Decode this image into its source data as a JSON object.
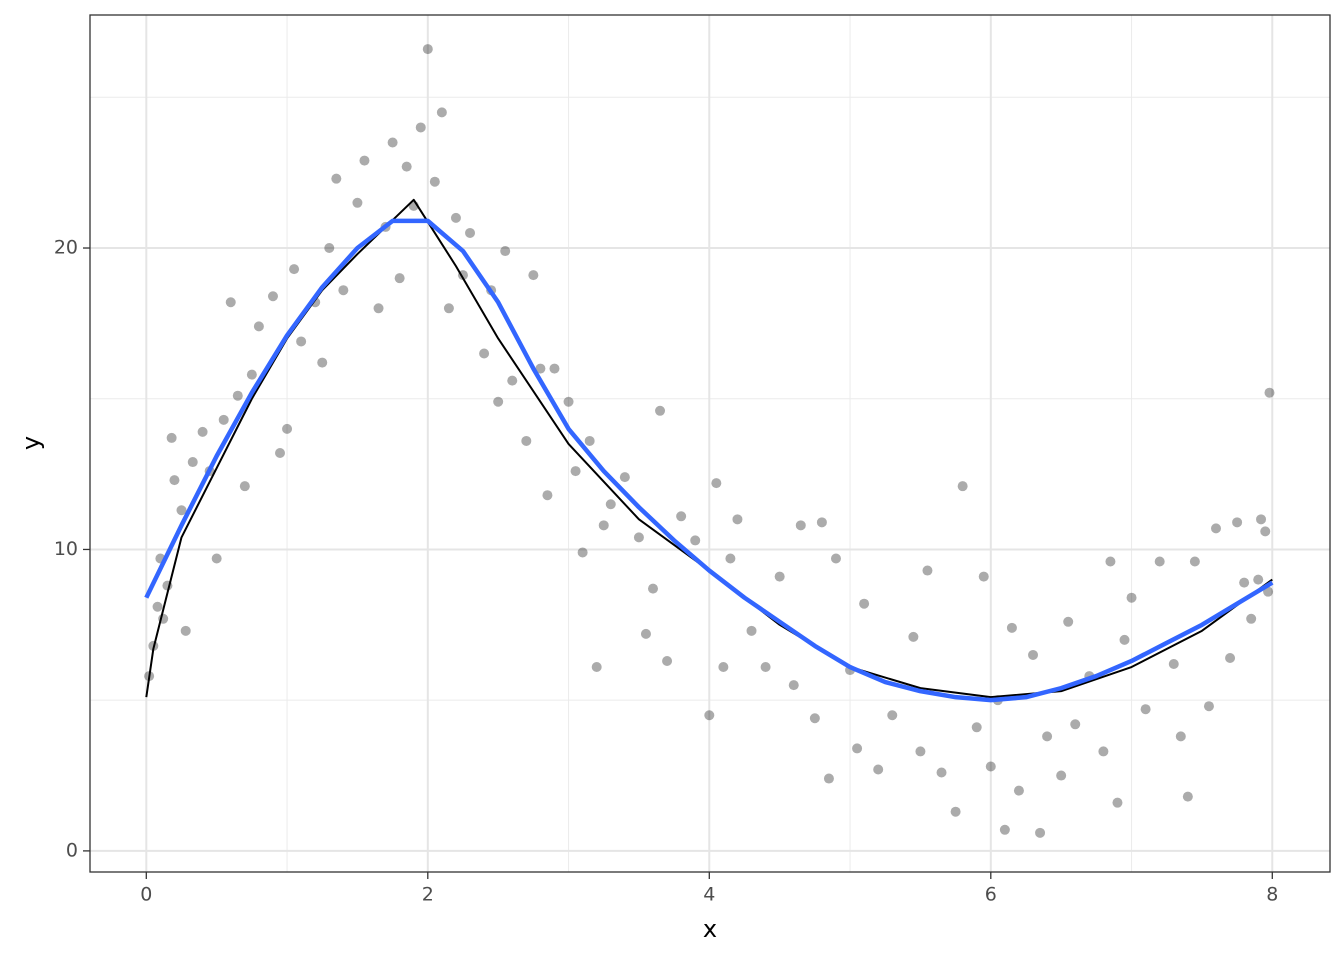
{
  "chart_data": {
    "type": "scatter",
    "x_label": "x",
    "y_label": "y",
    "xlim": [
      -0.4,
      8.41
    ],
    "ylim": [
      -0.7,
      27.73
    ],
    "xticks": [
      0,
      2,
      4,
      6,
      8
    ],
    "yticks": [
      0,
      10,
      20
    ],
    "x_minor_ticks": [
      1,
      3,
      5,
      7
    ],
    "y_minor_ticks": [
      5,
      15,
      25
    ],
    "grid": true,
    "points": {
      "color": "#000000",
      "opacity": 0.33,
      "x": [
        0.02,
        0.05,
        0.08,
        0.1,
        0.12,
        0.15,
        0.18,
        0.2,
        0.25,
        0.28,
        0.33,
        0.4,
        0.45,
        0.5,
        0.55,
        0.6,
        0.65,
        0.7,
        0.75,
        0.8,
        0.9,
        0.95,
        1.0,
        1.05,
        1.1,
        1.2,
        1.25,
        1.3,
        1.35,
        1.4,
        1.5,
        1.55,
        1.65,
        1.7,
        1.75,
        1.8,
        1.85,
        1.9,
        1.95,
        2.0,
        2.05,
        2.1,
        2.15,
        2.2,
        2.25,
        2.3,
        2.4,
        2.45,
        2.5,
        2.55,
        2.6,
        2.7,
        2.75,
        2.8,
        2.85,
        2.9,
        3.0,
        3.05,
        3.1,
        3.15,
        3.2,
        3.25,
        3.3,
        3.4,
        3.5,
        3.55,
        3.6,
        3.65,
        3.7,
        3.8,
        3.9,
        4.0,
        4.05,
        4.1,
        4.15,
        4.2,
        4.3,
        4.4,
        4.5,
        4.6,
        4.65,
        4.75,
        4.8,
        4.85,
        4.9,
        5.0,
        5.05,
        5.1,
        5.2,
        5.3,
        5.45,
        5.5,
        5.55,
        5.65,
        5.75,
        5.8,
        5.9,
        5.95,
        6.0,
        6.05,
        6.1,
        6.15,
        6.2,
        6.3,
        6.35,
        6.4,
        6.5,
        6.55,
        6.6,
        6.7,
        6.8,
        6.85,
        6.9,
        6.95,
        7.0,
        7.1,
        7.2,
        7.3,
        7.35,
        7.4,
        7.45,
        7.55,
        7.6,
        7.7,
        7.75,
        7.8,
        7.85,
        7.9,
        7.92,
        7.95,
        7.98,
        7.97
      ],
      "y": [
        5.8,
        6.8,
        8.1,
        9.7,
        7.7,
        8.8,
        13.7,
        12.3,
        11.3,
        7.3,
        12.9,
        13.9,
        12.6,
        9.7,
        14.3,
        18.2,
        15.1,
        12.1,
        15.8,
        17.4,
        18.4,
        13.2,
        14.0,
        19.3,
        16.9,
        18.2,
        16.2,
        20.0,
        22.3,
        18.6,
        21.5,
        22.9,
        18.0,
        20.7,
        23.5,
        19.0,
        22.7,
        21.4,
        24.0,
        26.6,
        22.2,
        24.5,
        18.0,
        21.0,
        19.1,
        20.5,
        16.5,
        18.6,
        14.9,
        19.9,
        15.6,
        13.6,
        19.1,
        16.0,
        11.8,
        16.0,
        14.9,
        12.6,
        9.9,
        13.6,
        6.1,
        10.8,
        11.5,
        12.4,
        10.4,
        7.2,
        8.7,
        14.6,
        6.3,
        11.1,
        10.3,
        4.5,
        12.2,
        6.1,
        9.7,
        11.0,
        7.3,
        6.1,
        9.1,
        5.5,
        10.8,
        4.4,
        10.9,
        2.4,
        9.7,
        6.0,
        3.4,
        8.2,
        2.7,
        4.5,
        7.1,
        3.3,
        9.3,
        2.6,
        1.3,
        12.1,
        4.1,
        9.1,
        2.8,
        5.0,
        0.7,
        7.4,
        2.0,
        6.5,
        0.6,
        3.8,
        2.5,
        7.6,
        4.2,
        5.8,
        3.3,
        9.6,
        1.6,
        7.0,
        8.4,
        4.7,
        9.6,
        6.2,
        3.8,
        1.8,
        9.6,
        4.8,
        10.7,
        6.4,
        10.9,
        8.9,
        7.7,
        9.0,
        11.0,
        10.6,
        15.2,
        8.6
      ]
    },
    "lines": [
      {
        "color": "#000000",
        "width": 2,
        "x": [
          0,
          0.05,
          0.25,
          0.5,
          0.75,
          1,
          1.25,
          1.5,
          1.7,
          1.9,
          2.2,
          2.5,
          3,
          3.5,
          4,
          4.5,
          5,
          5.5,
          6,
          6.5,
          7,
          7.5,
          8
        ],
        "y": [
          5.1,
          6.7,
          10.4,
          12.7,
          15.0,
          17.0,
          18.6,
          19.8,
          20.7,
          21.6,
          19.4,
          17.0,
          13.5,
          11.0,
          9.3,
          7.5,
          6.1,
          5.4,
          5.1,
          5.3,
          6.1,
          7.3,
          9.0
        ]
      },
      {
        "color": "#3366ff",
        "width": 4.5,
        "x": [
          0,
          0.25,
          0.5,
          0.75,
          1,
          1.25,
          1.5,
          1.75,
          2,
          2.25,
          2.5,
          2.75,
          3,
          3.25,
          3.5,
          3.75,
          4,
          4.25,
          4.5,
          4.75,
          5,
          5.25,
          5.5,
          5.75,
          6,
          6.25,
          6.5,
          6.75,
          7,
          7.25,
          7.5,
          7.75,
          8
        ],
        "y": [
          8.4,
          10.8,
          13.1,
          15.2,
          17.1,
          18.7,
          20.0,
          20.9,
          20.9,
          19.9,
          18.2,
          16.0,
          14.0,
          12.6,
          11.4,
          10.3,
          9.3,
          8.4,
          7.6,
          6.8,
          6.1,
          5.6,
          5.3,
          5.1,
          5.0,
          5.1,
          5.4,
          5.8,
          6.3,
          6.9,
          7.5,
          8.2,
          8.9
        ]
      }
    ]
  }
}
